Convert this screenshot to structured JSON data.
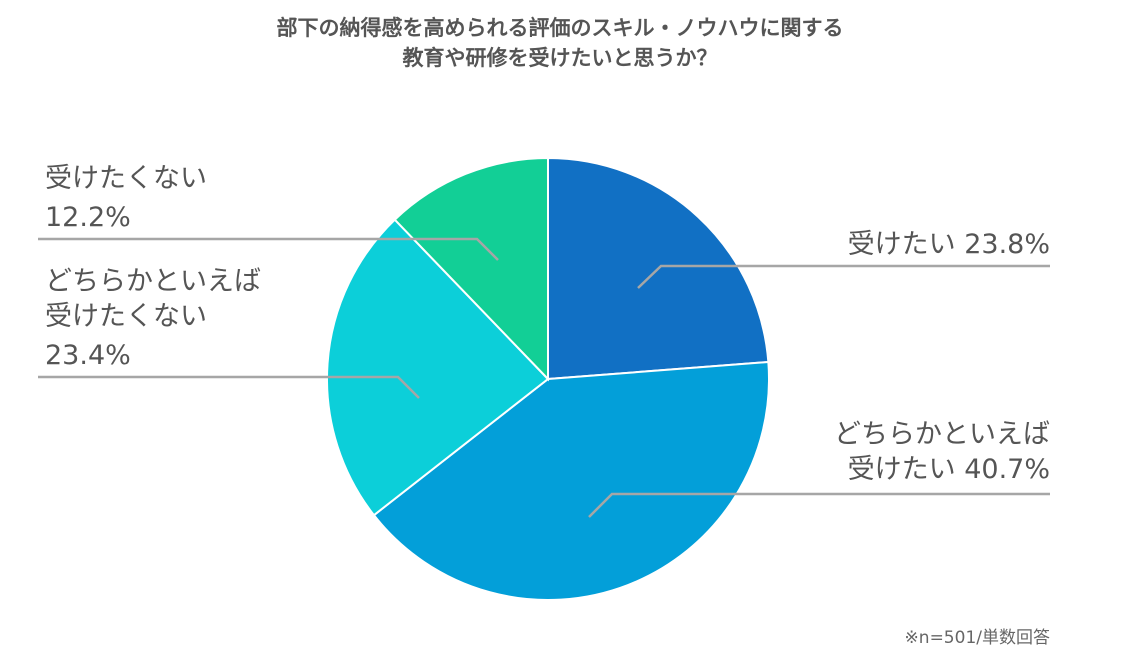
{
  "chart_data": {
    "type": "pie",
    "title": [
      "部下の納得感を高められる評価のスキル・ノウハウに関する",
      "教育や研修を受けたいと思うか？"
    ],
    "slices": [
      {
        "label_lines": [
          "受けたい 23.8%"
        ],
        "category": "受けたい",
        "value": 23.8,
        "color": "#1170c4"
      },
      {
        "label_lines": [
          "どちらかといえば",
          "受けたい 40.7%"
        ],
        "category": "どちらかといえば受けたい",
        "value": 40.7,
        "color": "#039fd9"
      },
      {
        "label_lines": [
          "どちらかといえば",
          "受けたくない",
          "23.4%"
        ],
        "category": "どちらかといえば受けたくない",
        "value": 23.4,
        "color": "#0ccfd9"
      },
      {
        "label_lines": [
          "受けたくない",
          "12.2%"
        ],
        "category": "受けたくない",
        "value": 12.2,
        "color": "#12cf96"
      }
    ],
    "start_angle": "12 o'clock",
    "direction": "clockwise",
    "note": "※n=501/単数回答"
  }
}
